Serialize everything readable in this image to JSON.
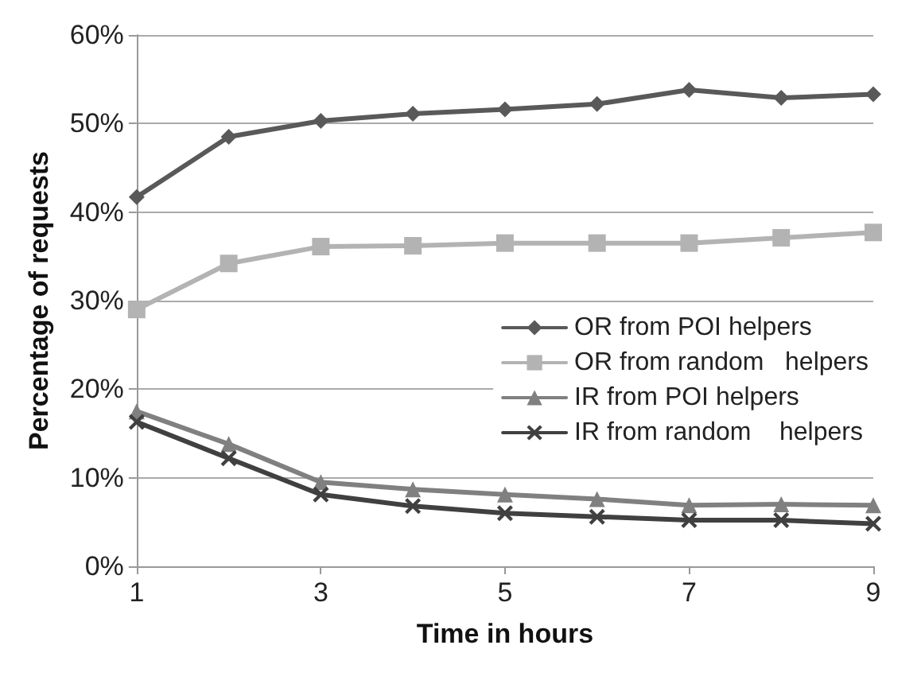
{
  "chart_data": {
    "type": "line",
    "xlabel": "Time in hours",
    "ylabel": "Percentage of requests",
    "x": [
      1,
      2,
      3,
      4,
      5,
      6,
      7,
      8,
      9
    ],
    "xlim": [
      1,
      9
    ],
    "xticks": [
      1,
      3,
      5,
      7,
      9
    ],
    "ylim": [
      0,
      60
    ],
    "yticks": [
      {
        "value": 0,
        "label": "0%"
      },
      {
        "value": 10,
        "label": "10%"
      },
      {
        "value": 20,
        "label": "20%"
      },
      {
        "value": 30,
        "label": "30%"
      },
      {
        "value": 40,
        "label": "40%"
      },
      {
        "value": 50,
        "label": "50%"
      },
      {
        "value": 60,
        "label": "60%"
      }
    ],
    "grid": "y",
    "legend": "center right",
    "line_style": "solid",
    "series": [
      {
        "name": "OR from POI helpers",
        "color": "#595959",
        "marker": "diamond",
        "values": [
          41.7,
          48.5,
          50.3,
          51.1,
          51.6,
          52.2,
          53.8,
          52.9,
          53.3
        ]
      },
      {
        "name": "OR from random   helpers",
        "color": "#b3b3b3",
        "marker": "square",
        "values": [
          29,
          34.2,
          36.1,
          36.2,
          36.5,
          36.5,
          36.5,
          37.1,
          37.7
        ]
      },
      {
        "name": "IR from POI helpers",
        "color": "#808080",
        "marker": "triangle",
        "values": [
          17.5,
          13.8,
          9.5,
          8.7,
          8.1,
          7.6,
          6.9,
          7.0,
          6.9
        ]
      },
      {
        "name": "IR from random    helpers",
        "color": "#404040",
        "marker": "cross",
        "values": [
          16.3,
          12.2,
          8.1,
          6.8,
          6.0,
          5.6,
          5.2,
          5.2,
          4.8
        ]
      }
    ]
  }
}
